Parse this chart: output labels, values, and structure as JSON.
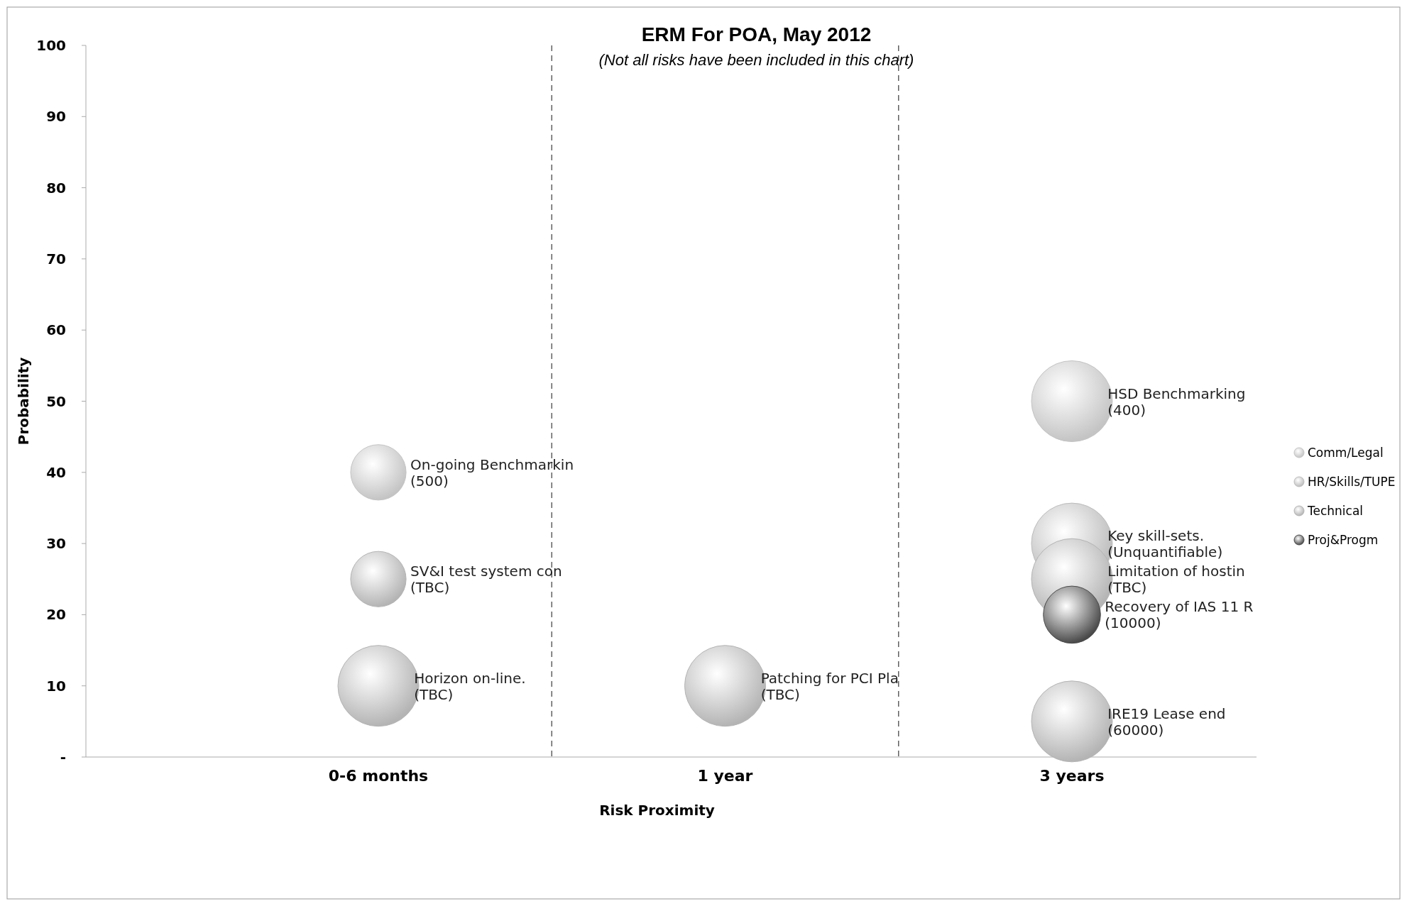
{
  "chart_data": {
    "type": "bubble",
    "title": "ERM For POA, May 2012",
    "subtitle": "(Not all risks have been included in this chart)",
    "xlabel": "Risk Proximity",
    "ylabel": "Probability",
    "categories": [
      "0-6 months",
      "1 year",
      "3 years"
    ],
    "ylim": [
      0,
      100
    ],
    "yticks": [
      {
        "value": 0,
        "label": "-"
      },
      10,
      20,
      30,
      40,
      50,
      60,
      70,
      80,
      90,
      100
    ],
    "grid": false,
    "legend": "right",
    "annotations": [
      {
        "text": "On-going Benchmarkin\n(500)",
        "x": "0-6 months",
        "y": 40
      },
      {
        "text": "HSD Benchmarking\n(400)",
        "x": "3 years",
        "y": 50
      },
      {
        "text": "Key skill-sets.\n(Unquantifiable)",
        "x": "3 years",
        "y": 30
      },
      {
        "text": "SV&I test system con\n(TBC)",
        "x": "0-6 months",
        "y": 25
      },
      {
        "text": "Horizon on-line.\n(TBC)",
        "x": "0-6 months",
        "y": 10
      },
      {
        "text": "Patching for PCI Pla\n(TBC)",
        "x": "1 year",
        "y": 10
      },
      {
        "text": "Limitation of hostin\n(TBC)",
        "x": "3 years",
        "y": 25
      },
      {
        "text": "IRE19 Lease end\n(60000)",
        "x": "3 years",
        "y": 5
      },
      {
        "text": "Recovery of IAS 11 R\n(10000)",
        "x": "3 years",
        "y": 20
      }
    ],
    "series": [
      {
        "name": "Comm/Legal",
        "color": "#c4c4c4",
        "x": [
          "0-6 months",
          "3 years"
        ],
        "values": [
          40,
          50
        ],
        "sizes": [
          0.47,
          1
        ]
      },
      {
        "name": "HR/Skills/TUPE",
        "color": "#bcbcbc",
        "x": [
          "3 years"
        ],
        "values": [
          30
        ],
        "sizes": [
          1
        ]
      },
      {
        "name": "Technical",
        "color": "#b4b4b4",
        "x": [
          "0-6 months",
          "0-6 months",
          "1 year",
          "3 years",
          "3 years"
        ],
        "values": [
          25,
          10,
          10,
          25,
          5
        ],
        "sizes": [
          0.47,
          1,
          1,
          1,
          1
        ]
      },
      {
        "name": "Proj&Progm",
        "color": "#4a4a4a",
        "x": [
          "3 years"
        ],
        "values": [
          20
        ],
        "sizes": [
          0.5
        ]
      }
    ]
  }
}
